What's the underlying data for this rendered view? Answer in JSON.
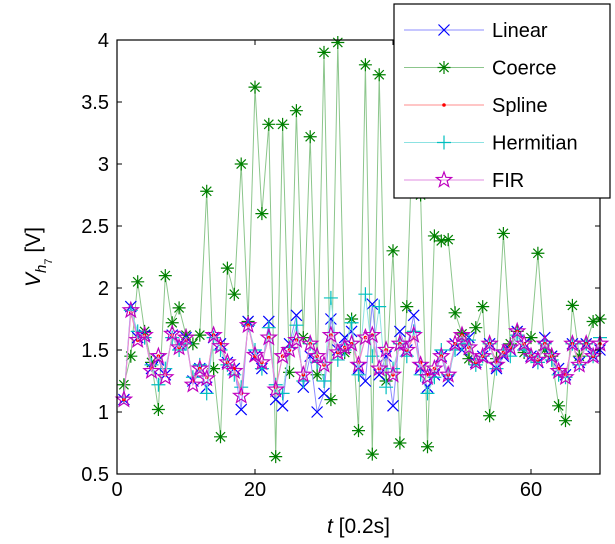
{
  "chart_data": {
    "type": "line",
    "x_axis": {
      "label_italic": "t",
      "label_rest": " [0.2s]",
      "range": [
        0,
        70
      ],
      "ticks": [
        0,
        20,
        40,
        60
      ],
      "tick_labels": [
        "0",
        "20",
        "40",
        "60"
      ]
    },
    "y_axis": {
      "label_base": "V",
      "label_sub": "h",
      "label_subsub": "7",
      "label_unit": " [V]",
      "range": [
        0.5,
        4
      ],
      "ticks": [
        0.5,
        1,
        1.5,
        2,
        2.5,
        3,
        3.5,
        4
      ],
      "tick_labels": [
        "0.5",
        "1",
        "1.5",
        "2",
        "2.5",
        "3",
        "3.5",
        "4"
      ]
    },
    "grid": false,
    "legend_position": "top-right",
    "series": [
      {
        "name": "Linear",
        "color": "#0000ff",
        "marker": "x",
        "x": [
          1,
          2,
          3,
          4,
          5,
          6,
          7,
          8,
          9,
          10,
          11,
          12,
          13,
          14,
          15,
          16,
          17,
          18,
          19,
          20,
          21,
          22,
          23,
          24,
          25,
          26,
          27,
          28,
          29,
          30,
          31,
          32,
          33,
          34,
          35,
          36,
          37,
          38,
          39,
          40,
          41,
          42,
          43,
          44,
          45,
          46,
          47,
          48,
          49,
          50,
          51,
          52,
          53,
          54,
          55,
          56,
          57,
          58,
          59,
          60,
          61,
          62,
          63,
          64,
          65,
          66,
          67,
          68,
          69,
          70
        ],
        "y": [
          1.1,
          1.85,
          1.6,
          1.62,
          1.35,
          1.42,
          1.3,
          1.62,
          1.55,
          1.6,
          1.25,
          1.35,
          1.2,
          1.6,
          1.55,
          1.4,
          1.35,
          1.02,
          1.73,
          1.45,
          1.35,
          1.73,
          1.1,
          1.05,
          1.55,
          1.78,
          1.2,
          1.45,
          1.0,
          1.15,
          1.75,
          1.5,
          1.6,
          1.65,
          1.35,
          1.25,
          1.87,
          1.3,
          1.45,
          1.05,
          1.65,
          1.5,
          1.78,
          1.35,
          1.2,
          1.3,
          1.45,
          1.25,
          1.55,
          1.5,
          1.6,
          1.4,
          1.45,
          1.55,
          1.35,
          1.45,
          1.5,
          1.65,
          1.55,
          1.45,
          1.4,
          1.6,
          1.45,
          1.35,
          1.3,
          1.55,
          1.4,
          1.55,
          1.45,
          1.5
        ]
      },
      {
        "name": "Coerce",
        "color": "#008000",
        "marker": "asterisk",
        "x": [
          1,
          2,
          3,
          4,
          5,
          6,
          7,
          8,
          9,
          10,
          11,
          12,
          13,
          14,
          15,
          16,
          17,
          18,
          19,
          20,
          21,
          22,
          23,
          24,
          25,
          26,
          27,
          28,
          29,
          30,
          31,
          32,
          33,
          34,
          35,
          36,
          37,
          38,
          39,
          40,
          41,
          42,
          43,
          44,
          45,
          46,
          47,
          48,
          49,
          50,
          51,
          52,
          53,
          54,
          55,
          56,
          57,
          58,
          59,
          60,
          61,
          62,
          63,
          64,
          65,
          66,
          67,
          68,
          69,
          70
        ],
        "y": [
          1.22,
          1.45,
          2.05,
          1.65,
          1.4,
          1.02,
          2.1,
          1.72,
          1.84,
          1.62,
          1.55,
          1.62,
          2.78,
          1.35,
          0.8,
          2.16,
          1.95,
          3.0,
          1.73,
          3.62,
          2.6,
          3.32,
          0.64,
          3.32,
          1.32,
          3.43,
          1.6,
          3.22,
          1.3,
          3.9,
          1.1,
          3.98,
          1.48,
          1.75,
          0.85,
          3.8,
          0.66,
          3.72,
          1.25,
          2.3,
          0.75,
          1.85,
          3.53,
          2.75,
          0.72,
          2.42,
          2.38,
          2.39,
          1.8,
          1.63,
          1.43,
          1.68,
          1.85,
          0.97,
          1.43,
          2.44,
          1.55,
          1.65,
          1.48,
          1.6,
          2.28,
          1.5,
          1.45,
          1.05,
          0.93,
          1.86,
          1.45,
          1.55,
          1.73,
          1.75
        ]
      },
      {
        "name": "Spline",
        "color": "#ff0000",
        "marker": "dot",
        "x": [
          1,
          2,
          3,
          4,
          5,
          6,
          7,
          8,
          9,
          10,
          11,
          12,
          13,
          14,
          15,
          16,
          17,
          18,
          19,
          20,
          21,
          22,
          23,
          24,
          25,
          26,
          27,
          28,
          29,
          30,
          31,
          32,
          33,
          34,
          35,
          36,
          37,
          38,
          39,
          40,
          41,
          42,
          43,
          44,
          45,
          46,
          47,
          48,
          49,
          50,
          51,
          52,
          53,
          54,
          55,
          56,
          57,
          58,
          59,
          60,
          61,
          62,
          63,
          64,
          65,
          66,
          67,
          68,
          69,
          70
        ],
        "y": [
          1.1,
          1.8,
          1.58,
          1.62,
          1.35,
          1.45,
          1.3,
          1.62,
          1.52,
          1.58,
          1.25,
          1.35,
          1.28,
          1.62,
          1.55,
          1.4,
          1.35,
          1.15,
          1.7,
          1.45,
          1.4,
          1.6,
          1.2,
          1.45,
          1.5,
          1.58,
          1.3,
          1.55,
          1.45,
          1.38,
          1.62,
          1.48,
          1.52,
          1.55,
          1.4,
          1.6,
          1.62,
          1.35,
          1.5,
          1.3,
          1.55,
          1.5,
          1.6,
          1.4,
          1.3,
          1.35,
          1.45,
          1.3,
          1.55,
          1.62,
          1.52,
          1.4,
          1.45,
          1.55,
          1.4,
          1.48,
          1.52,
          1.65,
          1.55,
          1.45,
          1.42,
          1.55,
          1.45,
          1.35,
          1.3,
          1.55,
          1.4,
          1.55,
          1.45,
          1.55
        ]
      },
      {
        "name": "Hermitian",
        "color": "#00bfbf",
        "marker": "plus",
        "x": [
          1,
          2,
          3,
          4,
          5,
          6,
          7,
          8,
          9,
          10,
          11,
          12,
          13,
          14,
          15,
          16,
          17,
          18,
          19,
          20,
          21,
          22,
          23,
          24,
          25,
          26,
          27,
          28,
          29,
          30,
          31,
          32,
          33,
          34,
          35,
          36,
          37,
          38,
          39,
          40,
          41,
          42,
          43,
          44,
          45,
          46,
          47,
          48,
          49,
          50,
          51,
          52,
          53,
          54,
          55,
          56,
          57,
          58,
          59,
          60,
          61,
          62,
          63,
          64,
          65,
          66,
          67,
          68,
          69,
          70
        ],
        "y": [
          1.12,
          1.82,
          1.65,
          1.6,
          1.38,
          1.22,
          1.35,
          1.6,
          1.5,
          1.55,
          1.28,
          1.38,
          1.15,
          1.6,
          1.5,
          1.38,
          1.3,
          1.2,
          1.7,
          1.5,
          1.35,
          1.68,
          1.22,
          1.15,
          1.52,
          1.7,
          1.25,
          1.55,
          1.4,
          1.25,
          1.92,
          1.42,
          1.5,
          1.72,
          1.3,
          1.95,
          1.45,
          1.85,
          1.2,
          1.35,
          1.55,
          1.45,
          1.65,
          1.3,
          1.15,
          1.28,
          1.5,
          1.3,
          1.5,
          1.55,
          1.58,
          1.38,
          1.45,
          1.55,
          1.35,
          1.5,
          1.45,
          1.62,
          1.5,
          1.45,
          1.4,
          1.55,
          1.42,
          1.3,
          1.28,
          1.55,
          1.38,
          1.55,
          1.45,
          1.6
        ]
      },
      {
        "name": "FIR",
        "color": "#bf00bf",
        "marker": "pentagram",
        "x": [
          1,
          2,
          3,
          4,
          5,
          6,
          7,
          8,
          9,
          10,
          11,
          12,
          13,
          14,
          15,
          16,
          17,
          18,
          19,
          20,
          21,
          22,
          23,
          24,
          25,
          26,
          27,
          28,
          29,
          30,
          31,
          32,
          33,
          34,
          35,
          36,
          37,
          38,
          39,
          40,
          41,
          42,
          43,
          44,
          45,
          46,
          47,
          48,
          49,
          50,
          51,
          52,
          53,
          54,
          55,
          56,
          57,
          58,
          59,
          60,
          61,
          62,
          63,
          64,
          65,
          66,
          67,
          68,
          69,
          70
        ],
        "y": [
          1.1,
          1.82,
          1.58,
          1.62,
          1.33,
          1.45,
          1.28,
          1.63,
          1.52,
          1.6,
          1.22,
          1.35,
          1.27,
          1.62,
          1.53,
          1.4,
          1.33,
          1.13,
          1.7,
          1.46,
          1.4,
          1.6,
          1.18,
          1.45,
          1.5,
          1.58,
          1.3,
          1.55,
          1.45,
          1.38,
          1.62,
          1.48,
          1.52,
          1.55,
          1.38,
          1.6,
          1.62,
          1.35,
          1.5,
          1.3,
          1.55,
          1.5,
          1.62,
          1.38,
          1.28,
          1.35,
          1.45,
          1.3,
          1.55,
          1.62,
          1.52,
          1.4,
          1.45,
          1.55,
          1.38,
          1.48,
          1.52,
          1.65,
          1.55,
          1.45,
          1.42,
          1.55,
          1.45,
          1.33,
          1.28,
          1.55,
          1.38,
          1.55,
          1.45,
          1.55
        ]
      }
    ]
  }
}
